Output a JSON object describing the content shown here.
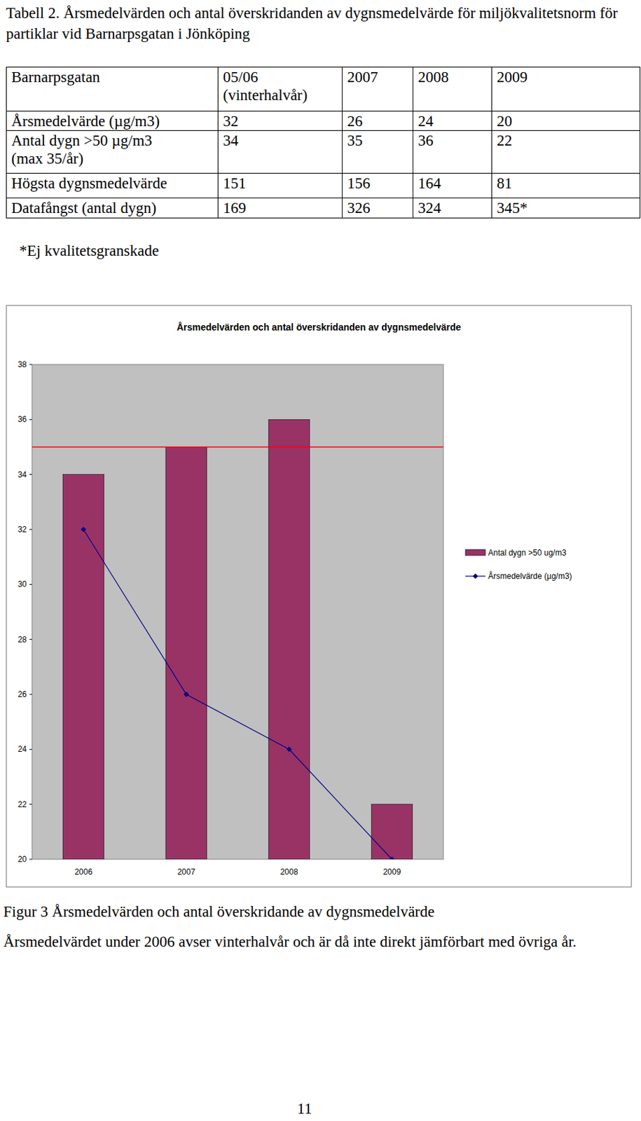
{
  "title": "Tabell 2. Årsmedelvärden och antal överskridanden av dygnsmedelvärde för miljökvalitetsnorm för partiklar vid Barnarpsgatan i Jönköping",
  "table": {
    "header": [
      [
        "Barnarpsgatan"
      ],
      [
        "05/06",
        "(vinterhalvår)"
      ],
      [
        "2007"
      ],
      [
        "2008"
      ],
      [
        "2009"
      ]
    ],
    "rows": [
      [
        [
          "Årsmedelvärde (µg/m3)"
        ],
        32,
        26,
        24,
        20
      ],
      [
        [
          "Antal dygn >50 µg/m3",
          "(max 35/år)"
        ],
        34,
        35,
        36,
        22
      ],
      [
        [
          "Högsta dygnsmedelvärde"
        ],
        151,
        156,
        164,
        81
      ],
      [
        [
          "Datafångst (antal dygn)"
        ],
        169,
        326,
        324,
        "345*"
      ]
    ]
  },
  "footnote": "*Ej kvalitetsgranskade",
  "chart_data": {
    "type": "bar",
    "title": "Årsmedelvärden och antal överskridanden av dygnsmedelvärde",
    "categories": [
      "2006",
      "2007",
      "2008",
      "2009"
    ],
    "series": [
      {
        "name": "Antal dygn >50 ug/m3",
        "type": "bar",
        "color": "#993366",
        "values": [
          34,
          35,
          36,
          22
        ]
      },
      {
        "name": "Årsmedelvärde (µg/m3)",
        "type": "line",
        "color": "#000080",
        "marker": "diamond",
        "values": [
          32,
          26,
          24,
          20
        ]
      }
    ],
    "ylim": [
      20,
      38
    ],
    "yticks": [
      20,
      22,
      24,
      26,
      28,
      30,
      32,
      34,
      36,
      38
    ],
    "grid": false,
    "legend": "right",
    "threshold": 35
  },
  "caption": "Figur 3 Årsmedelvärden och antal överskridande av dygnsmedelvärde",
  "note": "Årsmedelvärdet under 2006 avser vinterhalvår och är då inte direkt jämförbart med övriga år.",
  "page_number": 11
}
